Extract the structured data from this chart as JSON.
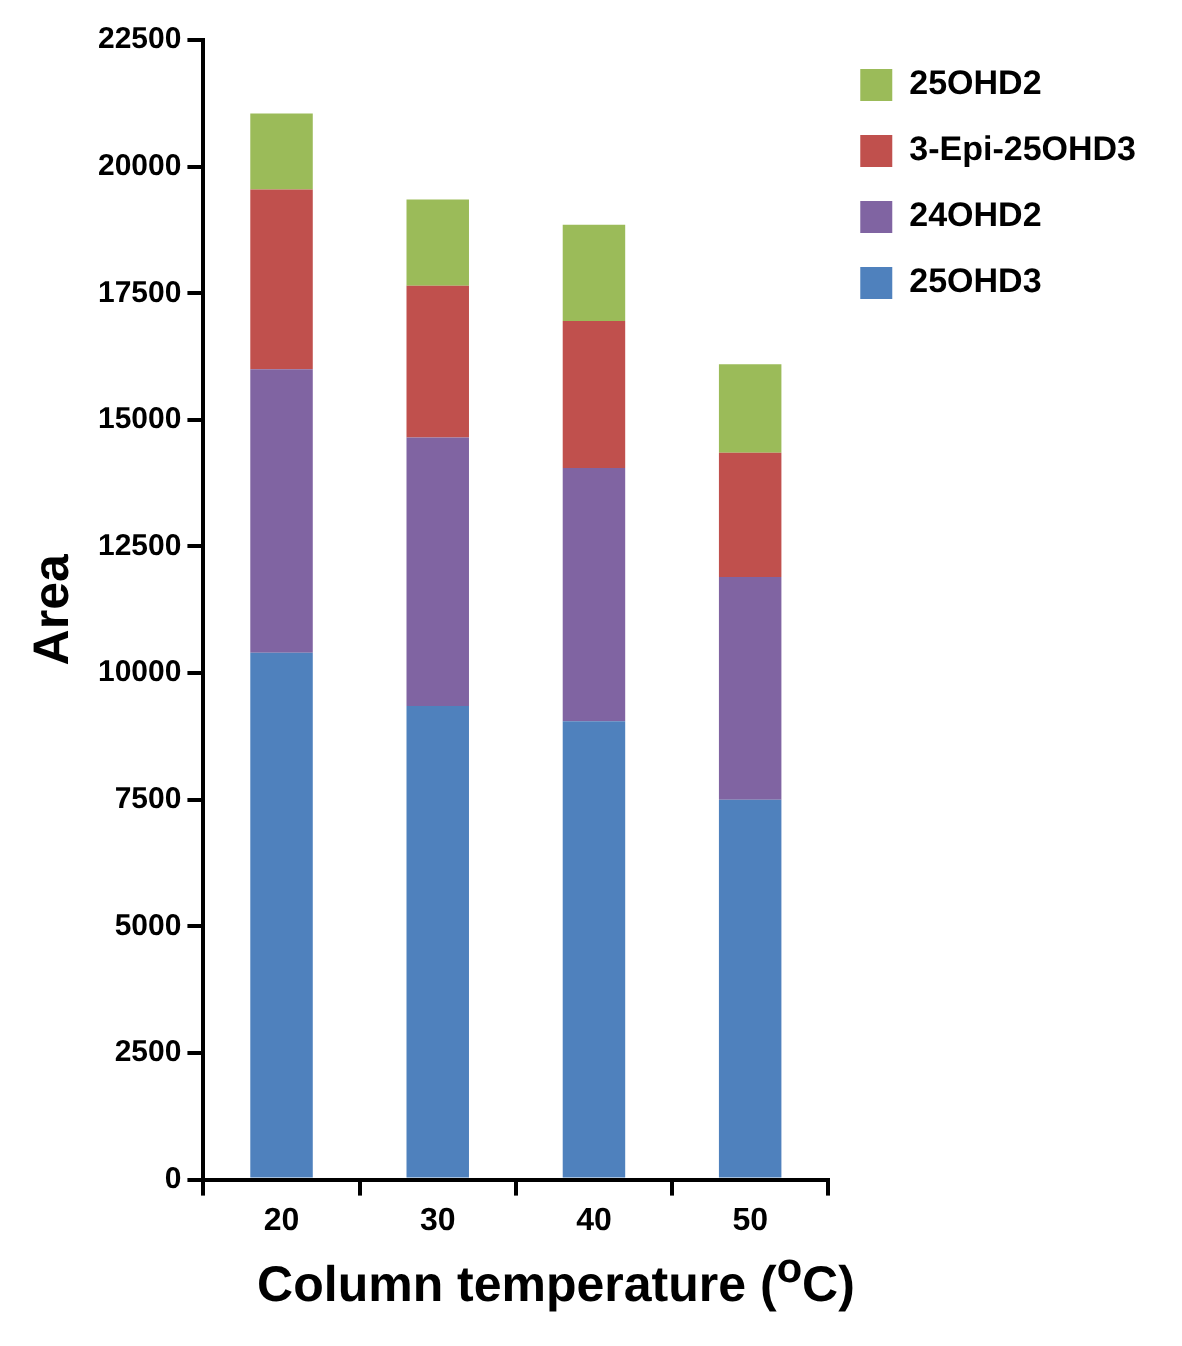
{
  "chart_data": {
    "type": "bar",
    "stacked": true,
    "xlabel": "Column temperature ($^{o}$C)",
    "ylabel": "Area",
    "categories": [
      "20",
      "30",
      "40",
      "50"
    ],
    "series": [
      {
        "name": "25OHD3",
        "color": "#4f81bd",
        "values": [
          10400,
          9350,
          9050,
          7500
        ]
      },
      {
        "name": "24OHD2",
        "color": "#8064a2",
        "values": [
          5600,
          5300,
          5000,
          4400
        ]
      },
      {
        "name": "3-Epi-25OHD3",
        "color": "#c0504d",
        "values": [
          3550,
          3000,
          2900,
          2450
        ]
      },
      {
        "name": "25OHD2",
        "color": "#9bbb59",
        "values": [
          1500,
          1700,
          1900,
          1750
        ]
      }
    ],
    "ylim": [
      0,
      22500
    ],
    "yticks": [
      0,
      2500,
      5000,
      7500,
      10000,
      12500,
      15000,
      17500,
      20000,
      22500
    ],
    "legend": "top right"
  }
}
